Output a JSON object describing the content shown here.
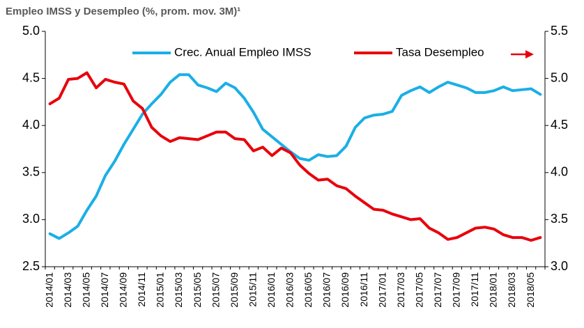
{
  "chart_data": {
    "type": "line",
    "title": "Empleo IMSS y Desempleo (%, prom. mov. 3M)¹",
    "categories": [
      "2014/01",
      null,
      "2014/03",
      null,
      "2014/05",
      null,
      "2014/07",
      null,
      "2014/09",
      null,
      "2014/11",
      null,
      "2015/01",
      null,
      "2015/03",
      null,
      "2015/05",
      null,
      "2015/07",
      null,
      "2015/09",
      null,
      "2015/11",
      null,
      "2016/01",
      null,
      "2016/03",
      null,
      "2016/05",
      null,
      "2016/07",
      null,
      "2016/09",
      null,
      "2016/11",
      null,
      "2017/01",
      null,
      "2017/03",
      null,
      "2017/05",
      null,
      "2017/07",
      null,
      "2017/09",
      null,
      "2017/11",
      null,
      "2018/01",
      null,
      "2018/03",
      null,
      "2018/05",
      null
    ],
    "series": [
      {
        "name": "Crec. Anual Empleo IMSS",
        "color": "#1aafe6",
        "axis": "y",
        "values": [
          2.85,
          2.8,
          2.86,
          2.93,
          3.1,
          3.25,
          3.47,
          3.62,
          3.8,
          3.96,
          4.12,
          4.23,
          4.33,
          4.46,
          4.54,
          4.54,
          4.43,
          4.4,
          4.36,
          4.45,
          4.4,
          4.29,
          4.14,
          3.96,
          3.88,
          3.8,
          3.72,
          3.65,
          3.63,
          3.69,
          3.67,
          3.68,
          3.78,
          3.98,
          4.08,
          4.11,
          4.12,
          4.15,
          4.32,
          4.37,
          4.41,
          4.35,
          4.41,
          4.46,
          4.43,
          4.4,
          4.35,
          4.35,
          4.37,
          4.41,
          4.37,
          4.38,
          4.39,
          4.33
        ]
      },
      {
        "name": "Tasa Desempleo",
        "color": "#e8000b",
        "axis": "y2",
        "values": [
          4.73,
          4.79,
          4.99,
          5.0,
          5.06,
          4.9,
          4.99,
          4.96,
          4.94,
          4.76,
          4.68,
          4.48,
          4.39,
          4.33,
          4.37,
          4.36,
          4.35,
          4.39,
          4.43,
          4.43,
          4.36,
          4.35,
          4.23,
          4.27,
          4.18,
          4.26,
          4.21,
          4.08,
          3.99,
          3.92,
          3.93,
          3.86,
          3.83,
          3.75,
          3.68,
          3.61,
          3.6,
          3.56,
          3.53,
          3.5,
          3.51,
          3.41,
          3.36,
          3.29,
          3.31,
          3.36,
          3.41,
          3.42,
          3.4,
          3.34,
          3.31,
          3.31,
          3.28,
          3.31
        ]
      }
    ],
    "ylim": [
      2.5,
      5.0
    ],
    "yticks": [
      2.5,
      {
        "value": 3.0,
        "label": "3.0"
      },
      3.5,
      {
        "value": 4.0,
        "label": "4.0"
      },
      4.5,
      {
        "value": 5.0,
        "label": "5.0"
      }
    ],
    "y2lim": [
      3.0,
      5.5
    ],
    "y2ticks": [
      {
        "value": 3.0,
        "label": "3.0"
      },
      3.5,
      {
        "value": 4.0,
        "label": "4.0"
      },
      4.5,
      {
        "value": 5.0,
        "label": "5.0"
      },
      5.5
    ],
    "grid": false,
    "legend": "top"
  }
}
